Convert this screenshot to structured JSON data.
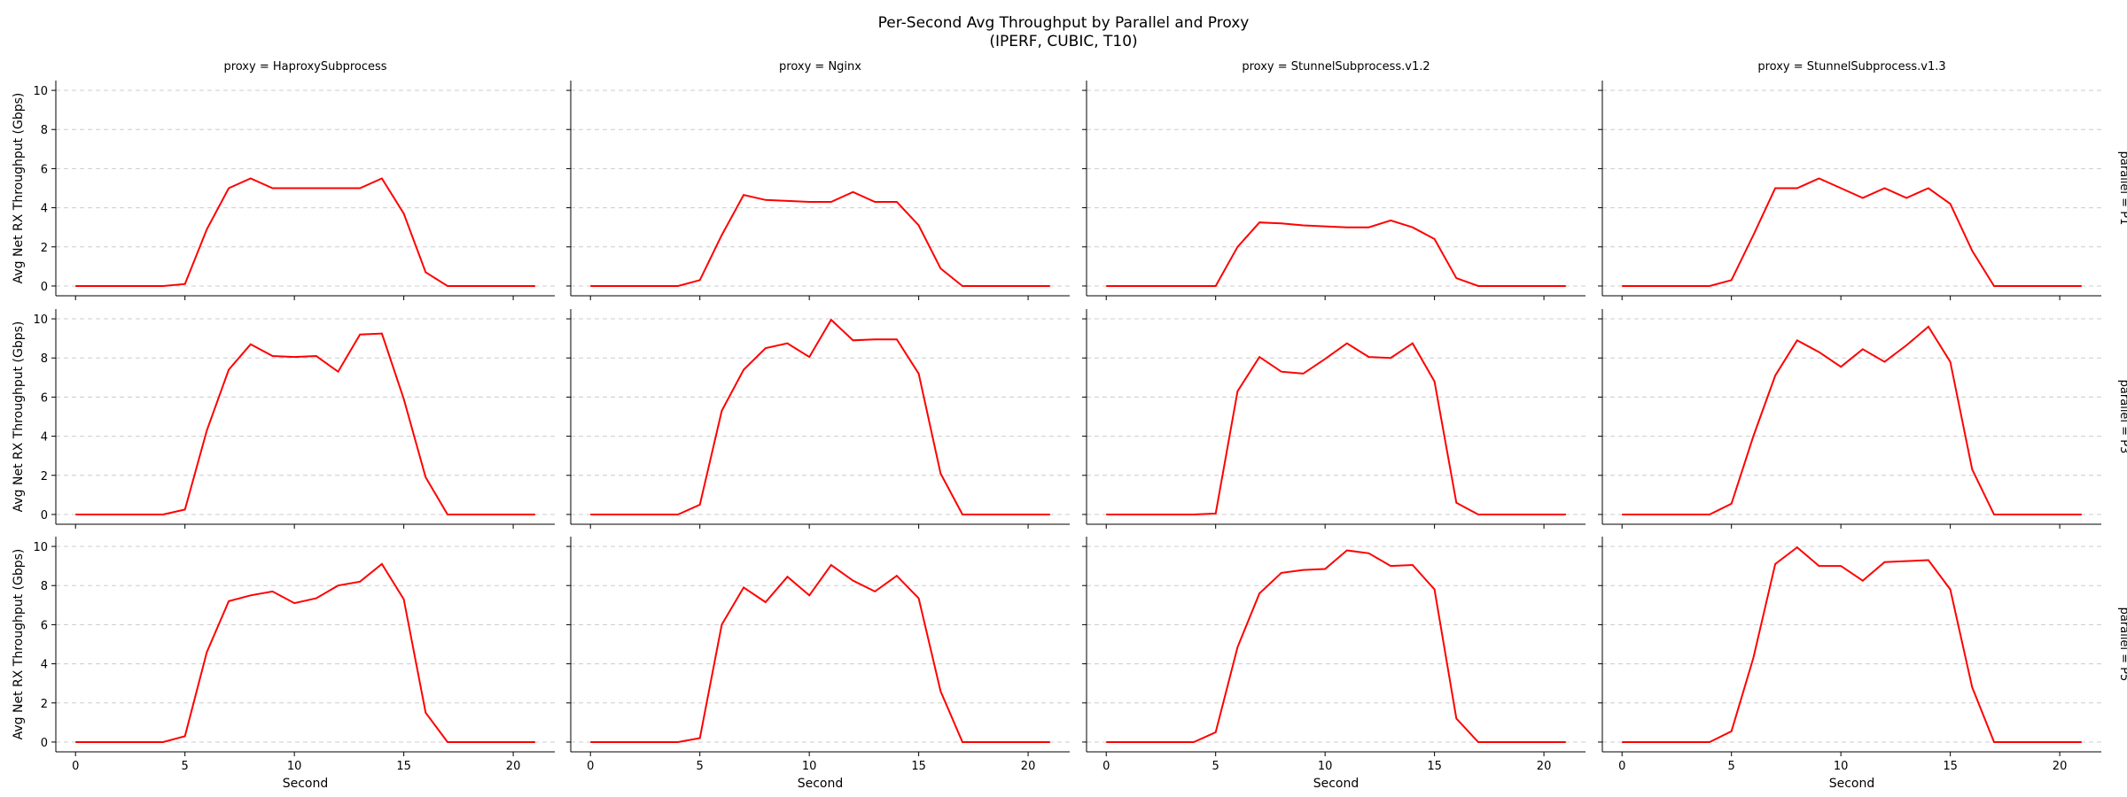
{
  "chart_data": {
    "type": "line",
    "title": "Per-Second Avg Throughput by Parallel and Proxy",
    "subtitle": "(IPERF, CUBIC, T10)",
    "xlabel": "Second",
    "ylabel": "Avg Net RX Throughput (Gbps)",
    "xlim": [
      -0.9,
      21.9
    ],
    "ylim": [
      -0.5,
      10.5
    ],
    "xticks": [
      0,
      5,
      10,
      15,
      20
    ],
    "yticks": [
      0,
      2,
      4,
      6,
      8,
      10
    ],
    "grid": "y-dashed",
    "line_color": "#ff0000",
    "x": [
      0,
      1,
      2,
      3,
      4,
      5,
      6,
      7,
      8,
      9,
      10,
      11,
      12,
      13,
      14,
      15,
      16,
      17,
      18,
      19,
      20,
      21
    ],
    "columns": [
      "proxy = HaproxySubprocess",
      "proxy = Nginx",
      "proxy = StunnelSubprocess.v1.2",
      "proxy = StunnelSubprocess.v1.3"
    ],
    "rows": [
      "parallel = P1",
      "parallel = P3",
      "parallel = P5"
    ],
    "panels": [
      [
        {
          "values": [
            0,
            0,
            0,
            0,
            0,
            0.1,
            2.9,
            5.0,
            5.5,
            5.0,
            5.0,
            5.0,
            5.0,
            5.0,
            5.5,
            3.7,
            0.7,
            0,
            0,
            0,
            0,
            0
          ]
        },
        {
          "values": [
            0,
            0,
            0,
            0,
            0,
            0.3,
            2.6,
            4.65,
            4.4,
            4.35,
            4.3,
            4.3,
            4.8,
            4.3,
            4.3,
            3.1,
            0.9,
            0,
            0,
            0,
            0,
            0
          ]
        },
        {
          "values": [
            0,
            0,
            0,
            0,
            0,
            0,
            2.0,
            3.25,
            3.2,
            3.1,
            3.05,
            3.0,
            3.0,
            3.35,
            3.0,
            2.4,
            0.4,
            0,
            0,
            0,
            0,
            0
          ]
        },
        {
          "values": [
            0,
            0,
            0,
            0,
            0,
            0.3,
            2.6,
            5.0,
            5.0,
            5.5,
            5.0,
            4.5,
            5.0,
            4.5,
            5.0,
            4.2,
            1.8,
            0,
            0,
            0,
            0,
            0
          ]
        }
      ],
      [
        {
          "values": [
            0,
            0,
            0,
            0,
            0,
            0.25,
            4.3,
            7.4,
            8.7,
            8.1,
            8.05,
            8.1,
            7.3,
            9.2,
            9.25,
            5.9,
            1.9,
            0,
            0,
            0,
            0,
            0
          ]
        },
        {
          "values": [
            0,
            0,
            0,
            0,
            0,
            0.5,
            5.3,
            7.4,
            8.5,
            8.75,
            8.05,
            9.95,
            8.9,
            8.95,
            8.95,
            7.2,
            2.1,
            0,
            0,
            0,
            0,
            0
          ]
        },
        {
          "values": [
            0,
            0,
            0,
            0,
            0,
            0.05,
            6.3,
            8.05,
            7.3,
            7.2,
            7.95,
            8.75,
            8.05,
            8.0,
            8.75,
            6.8,
            0.6,
            0,
            0,
            0,
            0,
            0
          ]
        },
        {
          "values": [
            0,
            0,
            0,
            0,
            0,
            0.55,
            4.0,
            7.1,
            8.9,
            8.3,
            7.55,
            8.45,
            7.8,
            8.65,
            9.6,
            7.8,
            2.3,
            0,
            0,
            0,
            0,
            0
          ]
        }
      ],
      [
        {
          "values": [
            0,
            0,
            0,
            0,
            0,
            0.3,
            4.6,
            7.2,
            7.5,
            7.7,
            7.1,
            7.35,
            8.0,
            8.2,
            9.1,
            7.3,
            1.5,
            0,
            0,
            0,
            0,
            0
          ]
        },
        {
          "values": [
            0,
            0,
            0,
            0,
            0,
            0.2,
            6.0,
            7.9,
            7.15,
            8.45,
            7.5,
            9.05,
            8.25,
            7.7,
            8.5,
            7.35,
            2.6,
            0,
            0,
            0,
            0,
            0
          ]
        },
        {
          "values": [
            0,
            0,
            0,
            0,
            0,
            0.5,
            4.85,
            7.6,
            8.65,
            8.8,
            8.85,
            9.8,
            9.65,
            9.0,
            9.05,
            7.8,
            1.2,
            0,
            0,
            0,
            0,
            0
          ]
        },
        {
          "values": [
            0,
            0,
            0,
            0,
            0,
            0.55,
            4.3,
            9.1,
            9.95,
            9.0,
            9.0,
            8.25,
            9.2,
            9.25,
            9.3,
            7.8,
            2.8,
            0,
            0,
            0,
            0,
            0
          ]
        }
      ]
    ]
  }
}
